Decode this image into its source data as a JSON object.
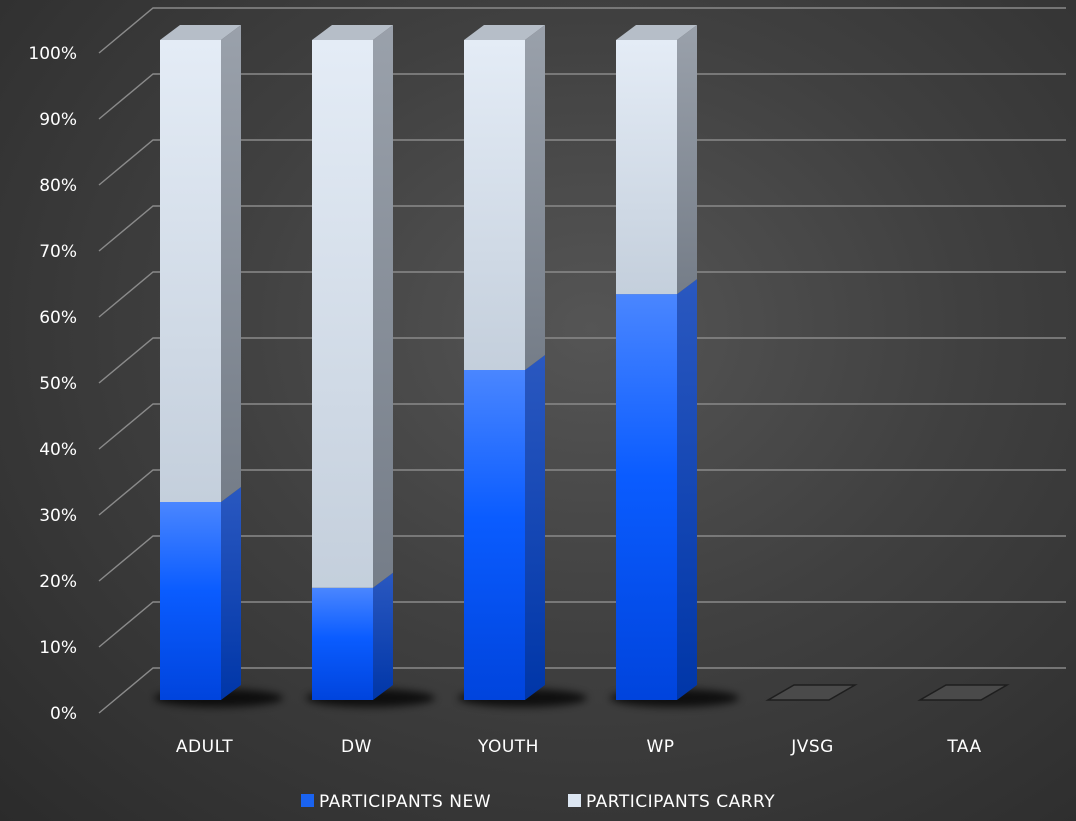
{
  "chart_data": {
    "type": "bar",
    "stacked": "percent",
    "categories": [
      "ADULT",
      "DW",
      "YOUTH",
      "WP",
      "JVSG",
      "TAA"
    ],
    "series": [
      {
        "name": "PARTICIPANTS NEW",
        "values": [
          30,
          17,
          50,
          61.5,
          0,
          0
        ],
        "color": "#1a63f0"
      },
      {
        "name": "PARTICIPANTS CARRY",
        "values": [
          70,
          83,
          50,
          38.5,
          0,
          0
        ],
        "color": "#dce6f2"
      }
    ],
    "y_ticks": [
      "0%",
      "10%",
      "20%",
      "30%",
      "40%",
      "50%",
      "60%",
      "70%",
      "80%",
      "90%",
      "100%"
    ],
    "ylim": [
      0,
      100
    ],
    "grid": true,
    "legend_position": "bottom",
    "background_color": "#3a3a3a"
  }
}
